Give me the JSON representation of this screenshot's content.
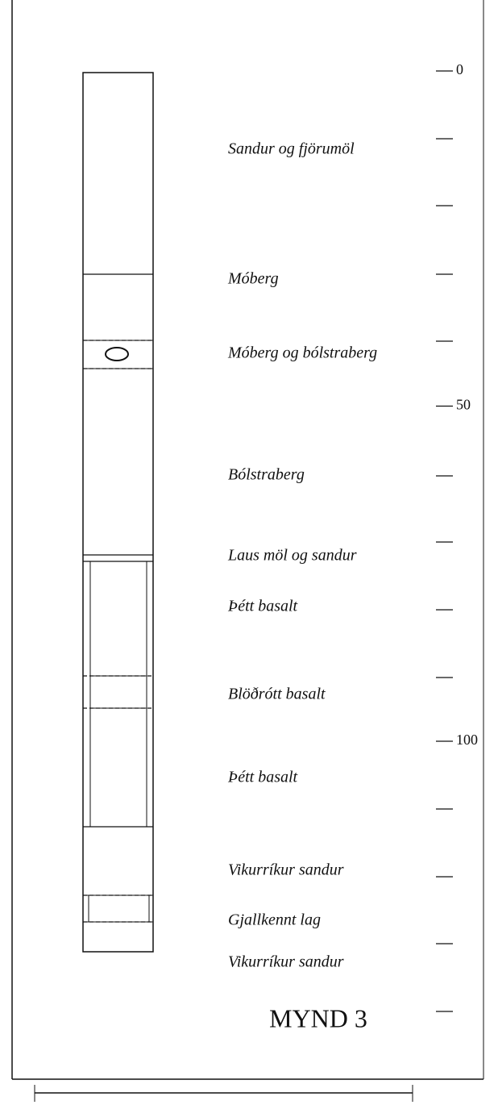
{
  "layers": [
    "Sandur og fjörumöl",
    "Móberg",
    "Móberg og bólstraberg",
    "Bólstraberg",
    "Laus möl og sandur",
    "Þétt basalt",
    "Blöðrótt basalt",
    "Þétt basalt",
    "Vikurríkur sandur",
    "Gjallkennt lag",
    "Vikurríkur sandur"
  ],
  "depth_axis": {
    "ticks": [
      0,
      50,
      100
    ]
  },
  "figure_label": "MYND 3"
}
